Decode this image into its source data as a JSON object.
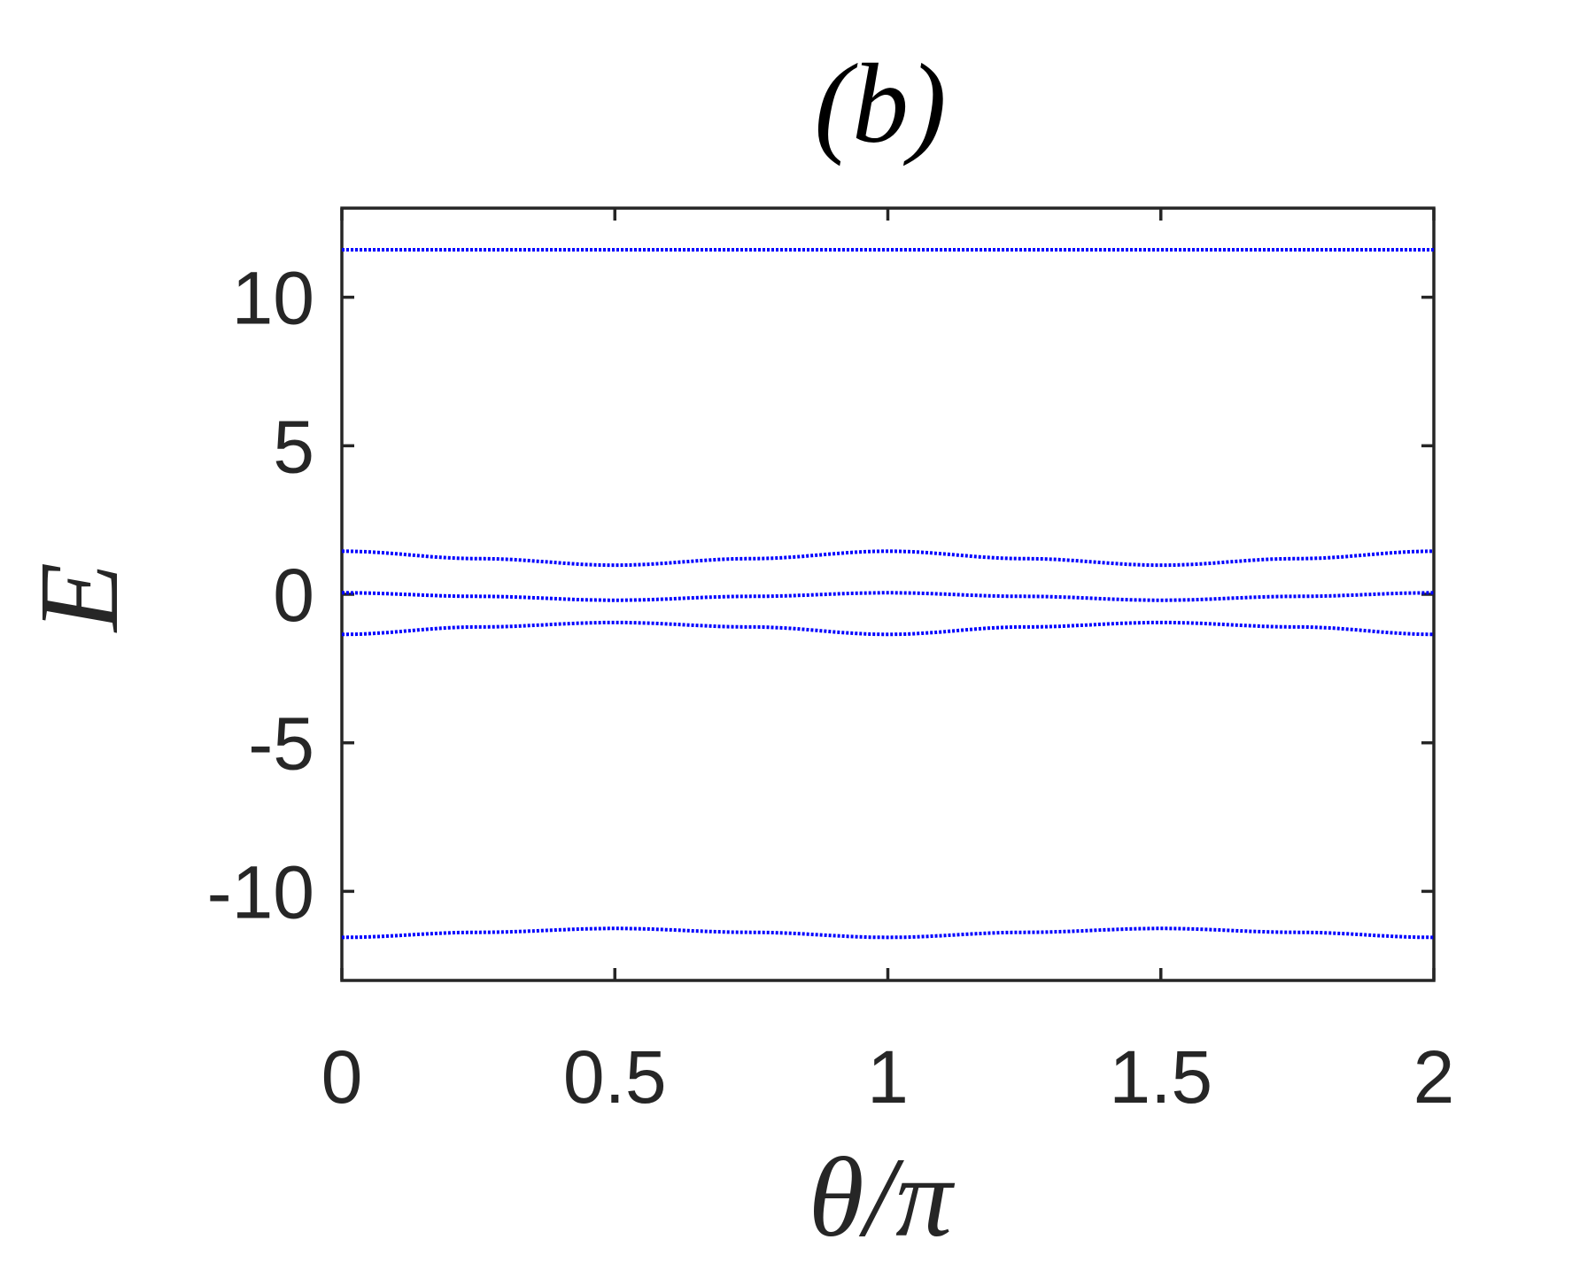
{
  "chart_data": {
    "type": "line",
    "title": "(b)",
    "xlabel": "θ/π",
    "ylabel": "E",
    "xlim": [
      0,
      2
    ],
    "ylim": [
      -13,
      13
    ],
    "xticks": [
      0,
      0.5,
      1,
      1.5,
      2
    ],
    "xtick_labels": [
      "0",
      "0.5",
      "1",
      "1.5",
      "2"
    ],
    "yticks": [
      -10,
      -5,
      0,
      5,
      10
    ],
    "ytick_labels": [
      "-10",
      "-5",
      "0",
      "5",
      "10"
    ],
    "grid": false,
    "line_color": "#0000ff",
    "line_style": "dotted",
    "series": [
      {
        "x": [
          0,
          0.25,
          0.5,
          0.75,
          1,
          1.25,
          1.5,
          1.75,
          2
        ],
        "values": [
          11.6,
          11.6,
          11.6,
          11.6,
          11.6,
          11.6,
          11.6,
          11.6,
          11.6
        ]
      },
      {
        "x": [
          0,
          0.25,
          0.5,
          0.75,
          1,
          1.25,
          1.5,
          1.75,
          2
        ],
        "values": [
          1.45,
          1.2,
          0.98,
          1.2,
          1.45,
          1.2,
          0.98,
          1.2,
          1.45
        ]
      },
      {
        "x": [
          0,
          0.25,
          0.5,
          0.75,
          1,
          1.25,
          1.5,
          1.75,
          2
        ],
        "values": [
          0.05,
          -0.07,
          -0.2,
          -0.07,
          0.05,
          -0.07,
          -0.2,
          -0.07,
          0.05
        ]
      },
      {
        "x": [
          0,
          0.25,
          0.5,
          0.75,
          1,
          1.25,
          1.5,
          1.75,
          2
        ],
        "values": [
          -1.35,
          -1.1,
          -0.95,
          -1.1,
          -1.35,
          -1.1,
          -0.95,
          -1.1,
          -1.35
        ]
      },
      {
        "x": [
          0,
          0.25,
          0.5,
          0.75,
          1,
          1.25,
          1.5,
          1.75,
          2
        ],
        "values": [
          -11.55,
          -11.38,
          -11.25,
          -11.38,
          -11.55,
          -11.38,
          -11.25,
          -11.38,
          -11.55
        ]
      }
    ]
  }
}
